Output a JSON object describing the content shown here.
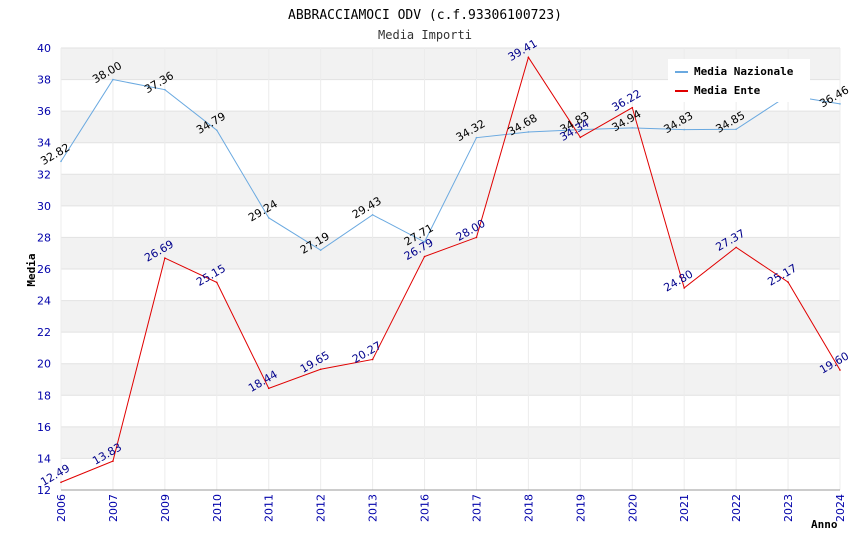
{
  "chart_data": {
    "type": "line",
    "title": "ABBRACCIAMOCI ODV (c.f.93306100723)",
    "subtitle": "Media Importi",
    "xlabel": "Anno",
    "ylabel": "Media",
    "ylim": [
      12,
      40
    ],
    "yticks": [
      12,
      14,
      16,
      18,
      20,
      22,
      24,
      26,
      28,
      30,
      32,
      34,
      36,
      38,
      40
    ],
    "categories": [
      "2006",
      "2007",
      "2009",
      "2010",
      "2011",
      "2012",
      "2013",
      "2016",
      "2017",
      "2018",
      "2019",
      "2020",
      "2021",
      "2022",
      "2023",
      "2024"
    ],
    "grid": "horizontal bands",
    "legend_position": "top-right",
    "series": [
      {
        "name": "Media Nazionale",
        "color": "#6aa9e0",
        "values": [
          32.82,
          38.0,
          37.36,
          34.79,
          29.24,
          27.19,
          29.43,
          27.71,
          34.32,
          34.68,
          34.83,
          34.94,
          34.83,
          34.85,
          37.0,
          36.46
        ],
        "labels": [
          "32.82",
          "38.00",
          "37.36",
          "34.79",
          "29.24",
          "27.19",
          "29.43",
          "27.71",
          "34.32",
          "34.68",
          "34.83",
          "34.94",
          "34.83",
          "34.85",
          "",
          "36.46"
        ]
      },
      {
        "name": "Media Ente",
        "color": "#e00000",
        "values": [
          12.49,
          13.83,
          26.69,
          25.15,
          18.44,
          19.65,
          20.27,
          26.79,
          28.0,
          39.41,
          34.34,
          36.22,
          24.8,
          27.37,
          25.17,
          19.6
        ],
        "labels": [
          "12.49",
          "13.83",
          "26.69",
          "25.15",
          "18.44",
          "19.65",
          "20.27",
          "26.79",
          "28.00",
          "39.41",
          "34.34",
          "36.22",
          "24.80",
          "27.37",
          "25.17",
          "19.60"
        ]
      }
    ]
  }
}
